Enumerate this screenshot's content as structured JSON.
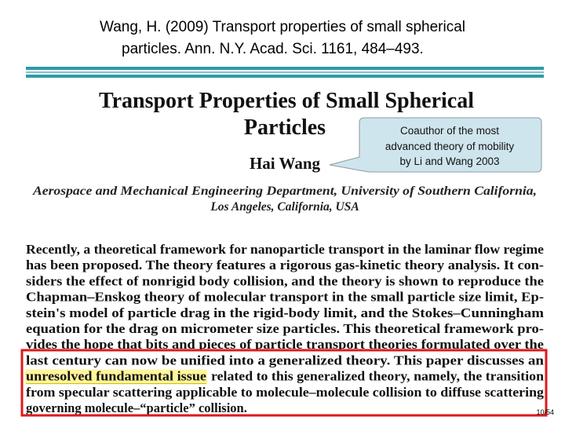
{
  "header": {
    "lines": [
      "Wang, H. (2009) Transport properties of small spherical",
      "particles. Ann. N.Y. Acad. Sci. 1161, 484–493."
    ]
  },
  "paper": {
    "title_lines": [
      "Transport Properties of Small Spherical",
      "Particles"
    ],
    "author": "Hai Wang",
    "affiliation_lines": [
      "Aerospace and Mechanical Engineering Department, University of Southern California,",
      "Los Angeles, California, USA"
    ]
  },
  "callout": {
    "lines": [
      "Coauthor of the most",
      "advanced theory of mobility",
      "by Li and Wang 2003"
    ]
  },
  "abstract": {
    "lines": [
      [
        "Recently, a theoretical framework for nanoparticle transport in the laminar flow regime"
      ],
      [
        "has been proposed. The theory features a rigorous gas-kinetic theory analysis. It con-"
      ],
      [
        "siders the effect of nonrigid body collision, and the theory is shown to reproduce the"
      ],
      [
        "Chapman–Enskog theory of molecular transport in the small particle size limit, Ep-"
      ],
      [
        "stein's model of particle drag in the rigid-body limit, and the Stokes–Cunningham"
      ],
      [
        "equation for the drag on micrometer size particles. This theoretical framework pro-"
      ],
      [
        "vides the hope that bits and pieces of particle transport theories formulated over the"
      ],
      [
        "last century can now be unified into a generalized theory. This paper discusses an"
      ],
      [
        "unresolved fundamental issue",
        "related to this generalized theory, namely, the transition"
      ],
      [
        "from specular scattering applicable to molecule–molecule collision to diffuse scattering"
      ],
      [
        "governing molecule–“particle” collision."
      ]
    ]
  },
  "footer": {
    "page": "10/54"
  }
}
